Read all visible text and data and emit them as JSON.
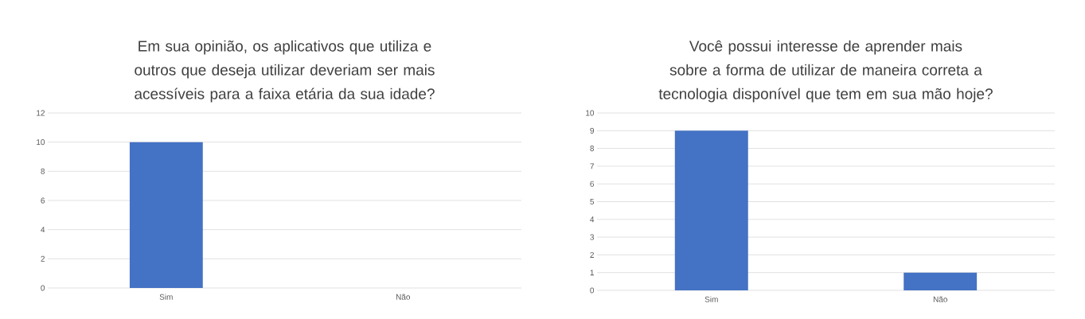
{
  "chart_data": [
    {
      "type": "bar",
      "title": "Em sua opinião, os aplicativos que utiliza e outros que deseja utilizar deveriam ser mais acessíveis para a faixa etária da sua idade?",
      "categories": [
        "Sim",
        "Não"
      ],
      "values": [
        10,
        0
      ],
      "color": "#4472c4",
      "ylim": [
        0,
        12
      ],
      "yticks": [
        0,
        2,
        4,
        6,
        8,
        10,
        12
      ],
      "grid": "y"
    },
    {
      "type": "bar",
      "title": "Você possui interesse de aprender mais sobre a forma de utilizar de maneira correta a tecnologia disponível que tem em sua mão hoje?",
      "categories": [
        "Sim",
        "Não"
      ],
      "values": [
        9,
        1
      ],
      "color": "#4472c4",
      "ylim": [
        0,
        10
      ],
      "yticks": [
        0,
        1,
        2,
        3,
        4,
        5,
        6,
        7,
        8,
        9,
        10
      ],
      "grid": "y"
    }
  ]
}
